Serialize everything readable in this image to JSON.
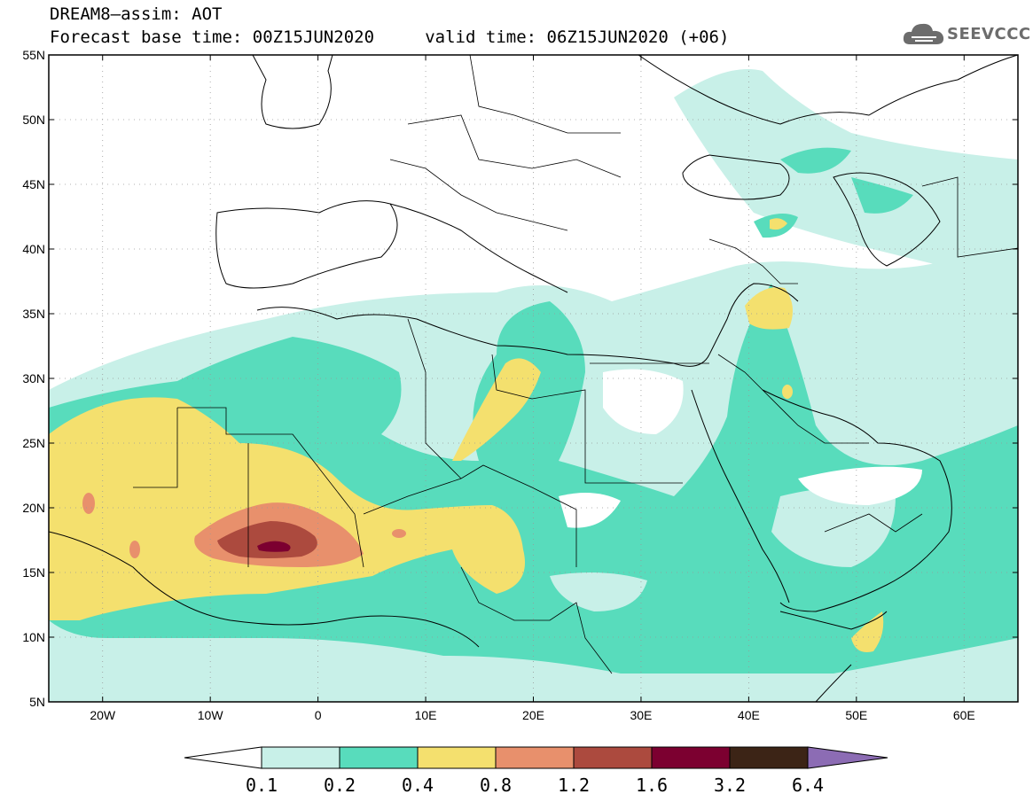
{
  "header": {
    "line1": "DREAM8–assim: AOT",
    "line2": "Forecast base time: 00Z15JUN2020     valid time: 06Z15JUN2020 (+06)"
  },
  "logo": {
    "text": "SEEVCCC",
    "icon": "cloud-icon"
  },
  "map": {
    "lat_labels": [
      "55N",
      "50N",
      "45N",
      "40N",
      "35N",
      "30N",
      "25N",
      "20N",
      "15N",
      "10N",
      "5N"
    ],
    "lon_labels": [
      "20W",
      "10W",
      "0",
      "10E",
      "20E",
      "30E",
      "40E",
      "50E",
      "60E"
    ],
    "lat_range": [
      5,
      55
    ],
    "lon_range": [
      -25,
      65
    ],
    "grid": "dotted"
  },
  "colorbar": {
    "labels": [
      "0.1",
      "0.2",
      "0.4",
      "0.8",
      "1.2",
      "1.6",
      "3.2",
      "6.4"
    ],
    "colors": [
      "#ffffff",
      "#c8f0e8",
      "#58dcbc",
      "#f4e06e",
      "#e8906c",
      "#ac4a3e",
      "#7c0030",
      "#3c2416",
      "#8c6cb4"
    ]
  }
}
